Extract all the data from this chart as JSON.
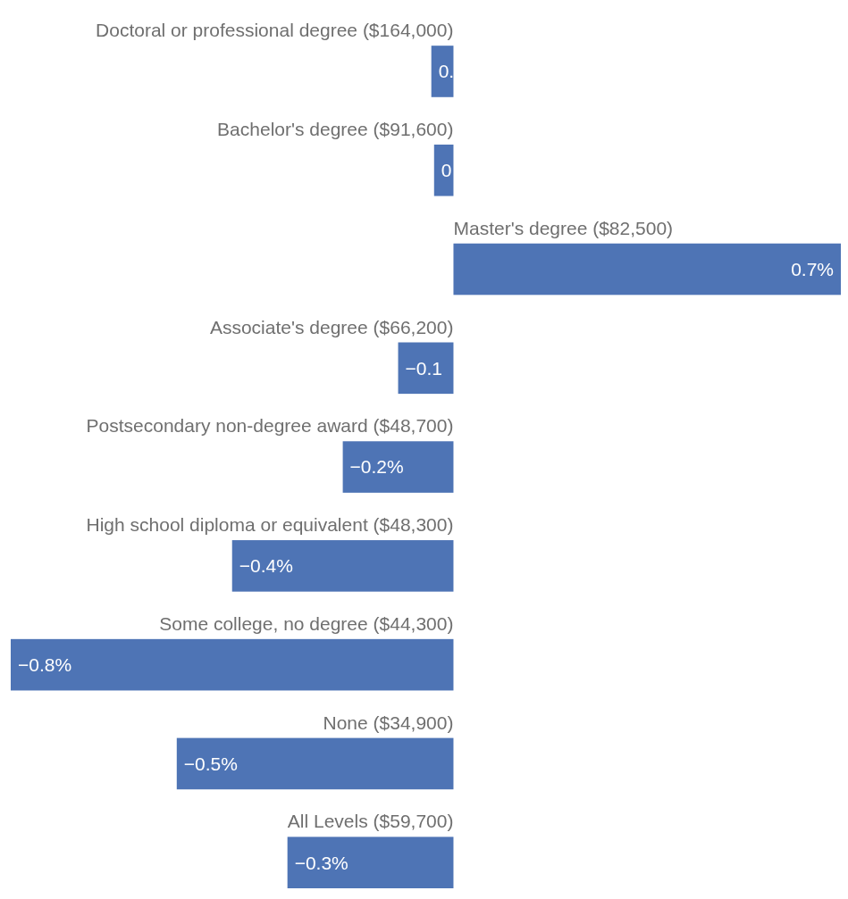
{
  "chart_data": {
    "type": "bar",
    "orientation": "horizontal",
    "categories": [
      "Doctoral or professional degree ($164,000)",
      "Bachelor's degree ($91,600)",
      "Master's degree ($82,500)",
      "Associate's degree ($66,200)",
      "Postsecondary non-degree award ($48,700)",
      "High school diploma or equivalent ($48,300)",
      "Some college, no degree ($44,300)",
      "None ($34,900)",
      "All Levels ($59,700)"
    ],
    "values": [
      -0.04,
      -0.035,
      0.7,
      -0.1,
      -0.2,
      -0.4,
      -0.8,
      -0.5,
      -0.3
    ],
    "value_labels": [
      "0.",
      "0",
      "0.7%",
      "−0.1",
      "−0.2%",
      "−0.4%",
      "−0.8%",
      "−0.5%",
      "−0.3%"
    ],
    "color": "#4e74b5"
  }
}
